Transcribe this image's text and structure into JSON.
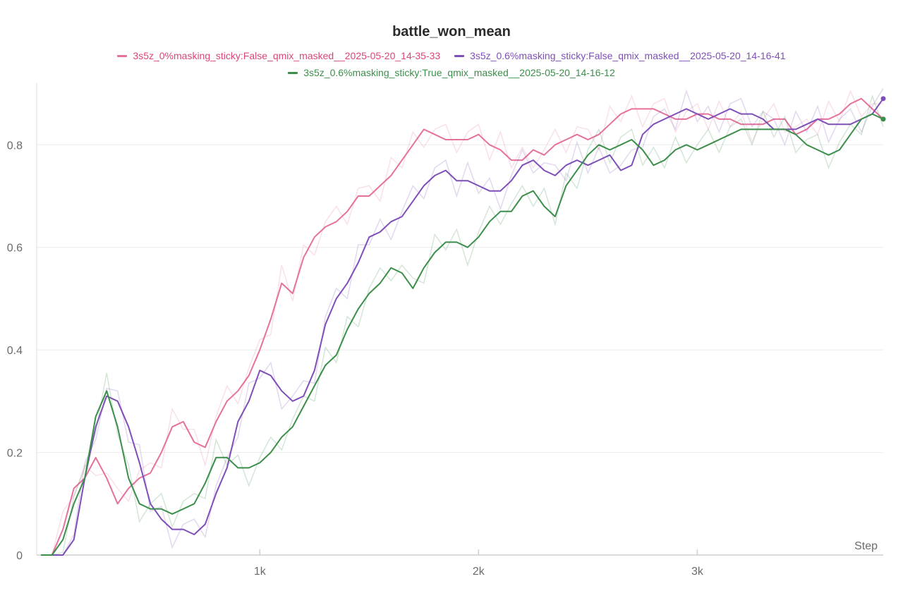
{
  "chart_data": {
    "type": "line",
    "title": "battle_won_mean",
    "xlabel": "Step",
    "ylabel": "",
    "xlim": [
      -20,
      3850
    ],
    "ylim": [
      0,
      0.92
    ],
    "x_ticks": [
      1000,
      2000,
      3000
    ],
    "x_tick_labels": [
      "1k",
      "2k",
      "3k"
    ],
    "y_ticks": [
      0,
      0.2,
      0.4,
      0.6,
      0.8
    ],
    "y_tick_labels": [
      "0",
      "0.2",
      "0.4",
      "0.6",
      "0.8"
    ],
    "grid": true,
    "legend_position": "top",
    "series": [
      {
        "name": "3s5z_0%masking_sticky:False_qmix_masked__2025-05-20_14-35-33",
        "color": "#e5719c",
        "x": [
          0,
          50,
          100,
          150,
          200,
          250,
          300,
          350,
          400,
          450,
          500,
          550,
          600,
          650,
          700,
          750,
          800,
          850,
          900,
          950,
          1000,
          1050,
          1100,
          1150,
          1200,
          1250,
          1300,
          1350,
          1400,
          1450,
          1500,
          1550,
          1600,
          1650,
          1700,
          1750,
          1800,
          1850,
          1900,
          1950,
          2000,
          2050,
          2100,
          2150,
          2200,
          2250,
          2300,
          2350,
          2400,
          2450,
          2500,
          2550,
          2600,
          2650,
          2700,
          2750,
          2800,
          2850,
          2900,
          2950,
          3000,
          3050,
          3100,
          3150,
          3200,
          3250,
          3300,
          3350,
          3400,
          3450,
          3500,
          3550,
          3600,
          3650,
          3700,
          3750,
          3800,
          3850
        ],
        "values": [
          0.0,
          0.0,
          0.05,
          0.13,
          0.15,
          0.19,
          0.15,
          0.1,
          0.13,
          0.15,
          0.16,
          0.2,
          0.25,
          0.26,
          0.22,
          0.21,
          0.26,
          0.3,
          0.32,
          0.35,
          0.4,
          0.46,
          0.53,
          0.51,
          0.58,
          0.62,
          0.64,
          0.65,
          0.67,
          0.7,
          0.7,
          0.72,
          0.74,
          0.77,
          0.8,
          0.83,
          0.82,
          0.81,
          0.81,
          0.81,
          0.82,
          0.8,
          0.79,
          0.77,
          0.77,
          0.79,
          0.78,
          0.8,
          0.81,
          0.82,
          0.81,
          0.82,
          0.84,
          0.86,
          0.87,
          0.87,
          0.87,
          0.86,
          0.85,
          0.85,
          0.86,
          0.86,
          0.85,
          0.85,
          0.84,
          0.84,
          0.84,
          0.85,
          0.85,
          0.82,
          0.83,
          0.85,
          0.85,
          0.86,
          0.88,
          0.89,
          0.87,
          0.85
        ]
      },
      {
        "name": "3s5z_0.6%masking_sticky:False_qmix_masked__2025-05-20_14-16-41",
        "color": "#7e4fb8",
        "x": [
          0,
          50,
          100,
          150,
          200,
          250,
          300,
          350,
          400,
          450,
          500,
          550,
          600,
          650,
          700,
          750,
          800,
          850,
          900,
          950,
          1000,
          1050,
          1100,
          1150,
          1200,
          1250,
          1300,
          1350,
          1400,
          1450,
          1500,
          1550,
          1600,
          1650,
          1700,
          1750,
          1800,
          1850,
          1900,
          1950,
          2000,
          2050,
          2100,
          2150,
          2200,
          2250,
          2300,
          2350,
          2400,
          2450,
          2500,
          2550,
          2600,
          2650,
          2700,
          2750,
          2800,
          2850,
          2900,
          2950,
          3000,
          3050,
          3100,
          3150,
          3200,
          3250,
          3300,
          3350,
          3400,
          3450,
          3500,
          3550,
          3600,
          3650,
          3700,
          3750,
          3800,
          3850
        ],
        "values": [
          0.0,
          0.0,
          0.0,
          0.03,
          0.15,
          0.25,
          0.31,
          0.3,
          0.25,
          0.18,
          0.1,
          0.07,
          0.05,
          0.05,
          0.04,
          0.06,
          0.12,
          0.17,
          0.26,
          0.3,
          0.36,
          0.35,
          0.32,
          0.3,
          0.31,
          0.36,
          0.45,
          0.5,
          0.53,
          0.57,
          0.62,
          0.63,
          0.65,
          0.66,
          0.69,
          0.72,
          0.74,
          0.75,
          0.73,
          0.73,
          0.72,
          0.71,
          0.71,
          0.73,
          0.76,
          0.77,
          0.75,
          0.74,
          0.76,
          0.77,
          0.76,
          0.77,
          0.78,
          0.75,
          0.76,
          0.82,
          0.84,
          0.85,
          0.86,
          0.87,
          0.86,
          0.85,
          0.86,
          0.87,
          0.86,
          0.86,
          0.85,
          0.83,
          0.83,
          0.83,
          0.84,
          0.85,
          0.84,
          0.84,
          0.84,
          0.85,
          0.86,
          0.89
        ]
      },
      {
        "name": "3s5z_0.6%masking_sticky:True_qmix_masked__2025-05-20_14-16-12",
        "color": "#3b8f4a",
        "x": [
          0,
          50,
          100,
          150,
          200,
          250,
          300,
          350,
          400,
          450,
          500,
          550,
          600,
          650,
          700,
          750,
          800,
          850,
          900,
          950,
          1000,
          1050,
          1100,
          1150,
          1200,
          1250,
          1300,
          1350,
          1400,
          1450,
          1500,
          1550,
          1600,
          1650,
          1700,
          1750,
          1800,
          1850,
          1900,
          1950,
          2000,
          2050,
          2100,
          2150,
          2200,
          2250,
          2300,
          2350,
          2400,
          2450,
          2500,
          2550,
          2600,
          2650,
          2700,
          2750,
          2800,
          2850,
          2900,
          2950,
          3000,
          3050,
          3100,
          3150,
          3200,
          3250,
          3300,
          3350,
          3400,
          3450,
          3500,
          3550,
          3600,
          3650,
          3700,
          3750,
          3800,
          3850
        ],
        "values": [
          0.0,
          0.0,
          0.03,
          0.1,
          0.15,
          0.27,
          0.32,
          0.25,
          0.15,
          0.1,
          0.09,
          0.09,
          0.08,
          0.09,
          0.1,
          0.14,
          0.19,
          0.19,
          0.17,
          0.17,
          0.18,
          0.2,
          0.23,
          0.25,
          0.29,
          0.33,
          0.37,
          0.39,
          0.44,
          0.48,
          0.51,
          0.53,
          0.56,
          0.55,
          0.52,
          0.56,
          0.59,
          0.61,
          0.61,
          0.6,
          0.62,
          0.65,
          0.67,
          0.67,
          0.7,
          0.71,
          0.68,
          0.66,
          0.72,
          0.75,
          0.78,
          0.8,
          0.79,
          0.8,
          0.81,
          0.79,
          0.76,
          0.77,
          0.79,
          0.8,
          0.79,
          0.8,
          0.81,
          0.82,
          0.83,
          0.83,
          0.83,
          0.83,
          0.83,
          0.82,
          0.8,
          0.79,
          0.78,
          0.79,
          0.82,
          0.85,
          0.86,
          0.85
        ]
      }
    ]
  }
}
